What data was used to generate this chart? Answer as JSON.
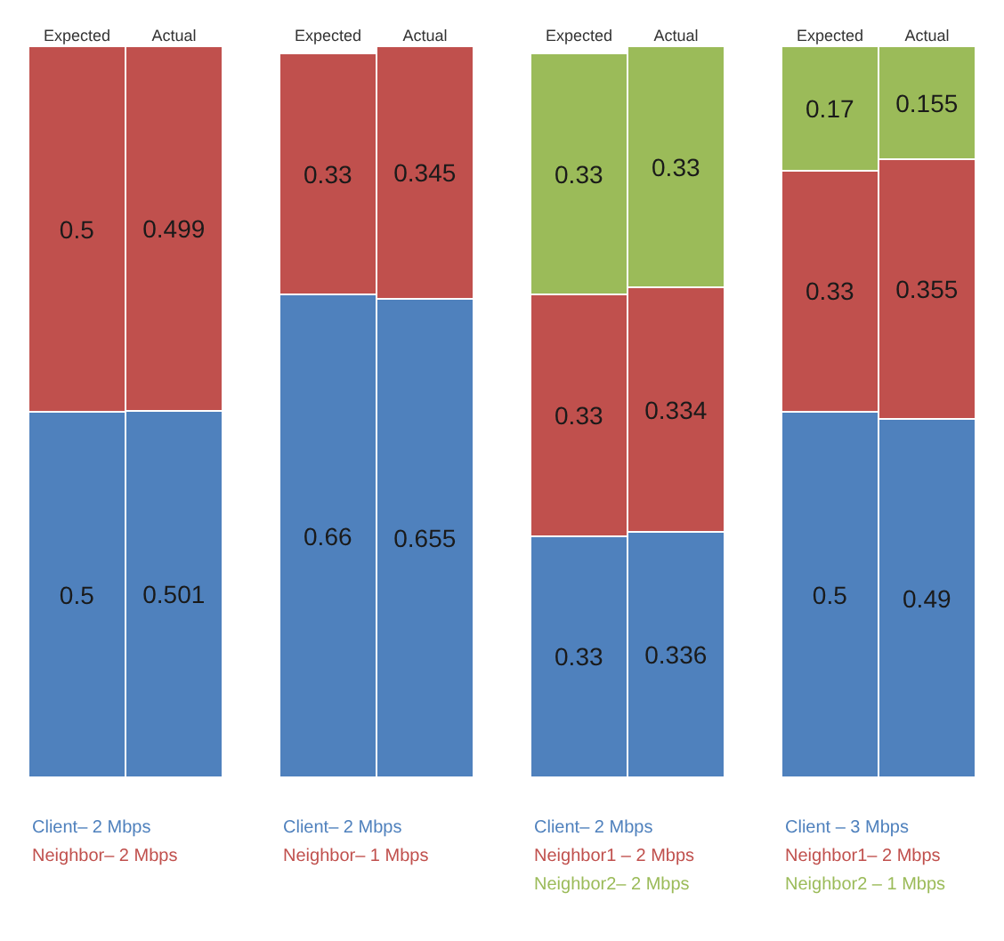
{
  "chart_data": [
    {
      "type": "bar",
      "stacked": true,
      "categories": [
        "Expected",
        "Actual"
      ],
      "ylim": [
        0,
        1
      ],
      "data_labels": true,
      "legend": "bottom",
      "series": [
        {
          "name": "Client– 2 Mbps",
          "color": "#4f81bd",
          "values": [
            0.5,
            0.501
          ]
        },
        {
          "name": "Neighbor– 2 Mbps",
          "color": "#c0504d",
          "values": [
            0.5,
            0.499
          ]
        }
      ]
    },
    {
      "type": "bar",
      "stacked": true,
      "categories": [
        "Expected",
        "Actual"
      ],
      "ylim": [
        0,
        1
      ],
      "data_labels": true,
      "legend": "bottom",
      "series": [
        {
          "name": "Client– 2 Mbps",
          "color": "#4f81bd",
          "values": [
            0.66,
            0.655
          ]
        },
        {
          "name": "Neighbor– 1 Mbps",
          "color": "#c0504d",
          "values": [
            0.33,
            0.345
          ]
        }
      ]
    },
    {
      "type": "bar",
      "stacked": true,
      "categories": [
        "Expected",
        "Actual"
      ],
      "ylim": [
        0,
        1
      ],
      "data_labels": true,
      "legend": "bottom",
      "series": [
        {
          "name": "Client– 2 Mbps",
          "color": "#4f81bd",
          "values": [
            0.33,
            0.336
          ]
        },
        {
          "name": "Neighbor1 – 2 Mbps",
          "color": "#c0504d",
          "values": [
            0.33,
            0.334
          ]
        },
        {
          "name": "Neighbor2– 2 Mbps",
          "color": "#9bbb59",
          "values": [
            0.33,
            0.33
          ]
        }
      ]
    },
    {
      "type": "bar",
      "stacked": true,
      "categories": [
        "Expected",
        "Actual"
      ],
      "ylim": [
        0,
        1
      ],
      "data_labels": true,
      "legend": "bottom",
      "series": [
        {
          "name": "Client – 3 Mbps",
          "color": "#4f81bd",
          "values": [
            0.5,
            0.49
          ]
        },
        {
          "name": "Neighbor1– 2 Mbps",
          "color": "#c0504d",
          "values": [
            0.33,
            0.355
          ]
        },
        {
          "name": "Neighbor2 – 1 Mbps",
          "color": "#9bbb59",
          "values": [
            0.17,
            0.155
          ]
        }
      ]
    }
  ]
}
